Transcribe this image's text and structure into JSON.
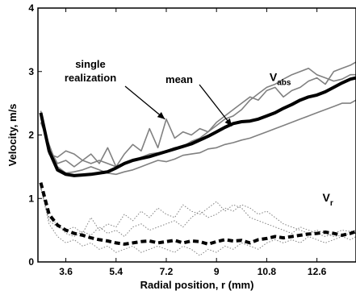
{
  "chart_data": {
    "type": "line",
    "xlabel": "Radial position,  r  (mm)",
    "ylabel": "Velocity,  m/s",
    "xlim": [
      2.6,
      14.0
    ],
    "ylim": [
      0,
      4
    ],
    "x_ticks": [
      "3.6",
      "5.4",
      "7.2",
      "9",
      "10.8",
      "12.6"
    ],
    "x_tick_values": [
      3.6,
      5.4,
      7.2,
      9.0,
      10.8,
      12.6
    ],
    "y_ticks": [
      "0",
      "1",
      "2",
      "3",
      "4"
    ],
    "y_tick_values": [
      0,
      1,
      2,
      3,
      4
    ],
    "grid": false,
    "x": [
      2.7,
      3.0,
      3.3,
      3.6,
      3.9,
      4.2,
      4.5,
      4.8,
      5.1,
      5.4,
      5.7,
      6.0,
      6.3,
      6.6,
      6.9,
      7.2,
      7.5,
      7.8,
      8.1,
      8.4,
      8.7,
      9.0,
      9.3,
      9.6,
      9.9,
      10.2,
      10.5,
      10.8,
      11.1,
      11.4,
      11.7,
      12.0,
      12.3,
      12.6,
      12.9,
      13.2,
      13.5,
      13.8,
      14.0
    ],
    "series": [
      {
        "name": "mean",
        "label_group": "abs",
        "style": "solid-thick",
        "color": "#000000",
        "values": [
          2.35,
          1.75,
          1.45,
          1.38,
          1.36,
          1.37,
          1.38,
          1.4,
          1.42,
          1.48,
          1.55,
          1.6,
          1.63,
          1.66,
          1.7,
          1.74,
          1.78,
          1.82,
          1.86,
          1.92,
          1.98,
          2.05,
          2.12,
          2.18,
          2.21,
          2.22,
          2.25,
          2.3,
          2.35,
          2.42,
          2.48,
          2.55,
          2.6,
          2.63,
          2.68,
          2.75,
          2.82,
          2.88,
          2.9
        ]
      },
      {
        "name": "single realization",
        "label_group": "abs",
        "style": "solid-thin",
        "color": "#808080",
        "values": [
          2.38,
          1.8,
          1.55,
          1.6,
          1.5,
          1.6,
          1.7,
          1.55,
          1.8,
          1.5,
          1.7,
          1.85,
          1.75,
          2.1,
          1.8,
          2.25,
          1.95,
          2.05,
          2.0,
          2.1,
          2.05,
          2.2,
          2.3,
          2.4,
          2.5,
          2.6,
          2.55,
          2.7,
          2.75,
          2.6,
          2.7,
          2.75,
          2.85,
          2.9,
          2.8,
          3.0,
          3.05,
          3.1,
          3.15
        ]
      },
      {
        "name": "",
        "label_group": "abs",
        "style": "solid-thin",
        "color": "#808080",
        "values": [
          2.3,
          1.7,
          1.65,
          1.75,
          1.7,
          1.6,
          1.55,
          1.6,
          1.55,
          1.5,
          1.55,
          1.6,
          1.65,
          1.7,
          1.72,
          1.75,
          1.8,
          1.82,
          1.9,
          1.95,
          2.05,
          2.15,
          2.25,
          2.3,
          2.4,
          2.55,
          2.65,
          2.75,
          2.8,
          2.88,
          2.95,
          3.0,
          3.05,
          2.95,
          2.9,
          2.85,
          2.88,
          2.95,
          2.95
        ]
      },
      {
        "name": "",
        "label_group": "abs",
        "style": "solid-thin",
        "color": "#808080",
        "values": [
          2.2,
          1.85,
          1.5,
          1.4,
          1.42,
          1.45,
          1.5,
          1.45,
          1.4,
          1.38,
          1.42,
          1.45,
          1.5,
          1.55,
          1.6,
          1.58,
          1.62,
          1.68,
          1.7,
          1.72,
          1.78,
          1.8,
          1.85,
          1.88,
          1.92,
          1.95,
          2.0,
          2.05,
          2.1,
          2.15,
          2.2,
          2.25,
          2.3,
          2.35,
          2.4,
          2.45,
          2.5,
          2.5,
          2.55
        ]
      },
      {
        "name": "",
        "label_group": "r",
        "style": "dashed-thick",
        "color": "#000000",
        "values": [
          1.25,
          0.75,
          0.58,
          0.5,
          0.45,
          0.42,
          0.38,
          0.35,
          0.33,
          0.3,
          0.28,
          0.3,
          0.32,
          0.33,
          0.3,
          0.32,
          0.34,
          0.3,
          0.33,
          0.32,
          0.28,
          0.32,
          0.35,
          0.33,
          0.34,
          0.3,
          0.35,
          0.37,
          0.4,
          0.38,
          0.4,
          0.42,
          0.44,
          0.45,
          0.47,
          0.45,
          0.42,
          0.45,
          0.48
        ]
      },
      {
        "name": "",
        "label_group": "r",
        "style": "dotted-thin",
        "color": "#808080",
        "values": [
          1.15,
          0.65,
          0.55,
          0.5,
          0.55,
          0.45,
          0.7,
          0.5,
          0.6,
          0.55,
          0.75,
          0.65,
          0.8,
          0.7,
          0.85,
          0.75,
          0.7,
          0.9,
          0.8,
          0.75,
          0.85,
          0.95,
          0.8,
          0.9,
          0.85,
          0.7,
          0.65,
          0.6,
          0.55,
          0.5,
          0.45,
          0.55,
          0.5,
          0.45,
          0.4,
          0.45,
          0.5,
          0.48,
          0.5
        ]
      },
      {
        "name": "",
        "label_group": "r",
        "style": "dotted-thin",
        "color": "#808080",
        "values": [
          1.2,
          0.7,
          0.6,
          0.45,
          0.4,
          0.48,
          0.42,
          0.55,
          0.45,
          0.5,
          0.4,
          0.55,
          0.6,
          0.5,
          0.55,
          0.6,
          0.65,
          0.55,
          0.7,
          0.8,
          0.7,
          0.75,
          0.85,
          0.8,
          0.9,
          0.85,
          0.75,
          0.8,
          0.7,
          0.6,
          0.55,
          0.5,
          0.45,
          0.5,
          0.45,
          0.4,
          0.42,
          0.45,
          0.45
        ]
      },
      {
        "name": "",
        "label_group": "r",
        "style": "dotted-thin",
        "color": "#808080",
        "values": [
          1.18,
          0.6,
          0.4,
          0.3,
          0.35,
          0.25,
          0.3,
          0.2,
          0.25,
          0.15,
          0.2,
          0.25,
          0.15,
          0.2,
          0.25,
          0.2,
          0.15,
          0.25,
          0.2,
          0.1,
          0.2,
          0.15,
          0.25,
          0.2,
          0.3,
          0.25,
          0.2,
          0.3,
          0.35,
          0.3,
          0.35,
          0.3,
          0.4,
          0.35,
          0.3,
          0.35,
          0.4,
          0.35,
          0.4
        ]
      }
    ],
    "annotations": [
      {
        "text_line1": "single",
        "text_line2": "realization",
        "arrow_to_x": 7.15,
        "arrow_to_y": 2.25
      },
      {
        "text_line1": "mean",
        "arrow_to_x": 9.55,
        "arrow_to_y": 2.14
      }
    ],
    "series_labels": [
      {
        "main": "V",
        "sub": "abs",
        "at_x": 10.9,
        "at_y": 2.85
      },
      {
        "main": "V",
        "sub": "r",
        "at_x": 12.8,
        "at_y": 0.95
      }
    ]
  }
}
